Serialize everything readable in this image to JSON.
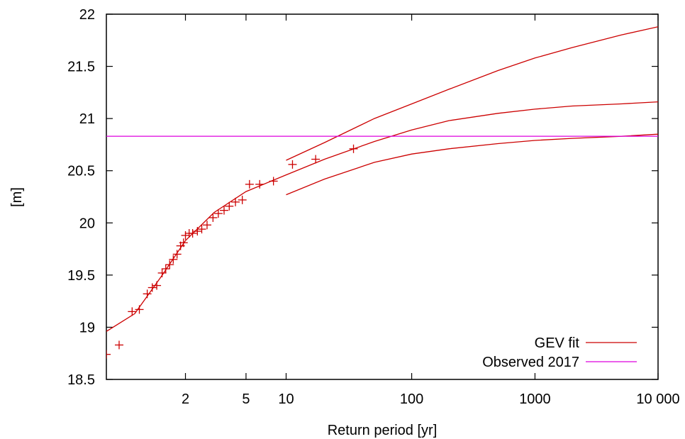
{
  "chart_data": {
    "type": "line",
    "title": "",
    "xlabel": "Return period [yr]",
    "ylabel": "[m]",
    "xscale": "log-gumbel",
    "xlim": [
      1.05,
      10000
    ],
    "ylim": [
      18.5,
      22
    ],
    "grid": false,
    "legend_position": "bottom-right",
    "xticks": [
      {
        "value": 2,
        "label": "2"
      },
      {
        "value": 5,
        "label": "5"
      },
      {
        "value": 10,
        "label": "10"
      },
      {
        "value": 100,
        "label": "100"
      },
      {
        "value": 1000,
        "label": "1000"
      },
      {
        "value": 10000,
        "label": "10 000"
      }
    ],
    "yticks": [
      {
        "value": 18.5,
        "label": "18.5"
      },
      {
        "value": 19,
        "label": "19"
      },
      {
        "value": 19.5,
        "label": "19.5"
      },
      {
        "value": 20,
        "label": "20"
      },
      {
        "value": 20.5,
        "label": "20.5"
      },
      {
        "value": 21,
        "label": "21"
      },
      {
        "value": 21.5,
        "label": "21.5"
      },
      {
        "value": 22,
        "label": "22"
      }
    ],
    "series": [
      {
        "name": "GEV fit",
        "style": "line",
        "color": "#cc0000",
        "points": [
          [
            1.05,
            18.96
          ],
          [
            1.2,
            19.13
          ],
          [
            1.5,
            19.48
          ],
          [
            2,
            19.83
          ],
          [
            3,
            20.1
          ],
          [
            5,
            20.3
          ],
          [
            10,
            20.46
          ],
          [
            20,
            20.61
          ],
          [
            50,
            20.78
          ],
          [
            100,
            20.89
          ],
          [
            200,
            20.98
          ],
          [
            500,
            21.05
          ],
          [
            1000,
            21.09
          ],
          [
            2000,
            21.12
          ],
          [
            5000,
            21.14
          ],
          [
            10000,
            21.16
          ]
        ]
      },
      {
        "name": "",
        "style": "line",
        "color": "#cc0000",
        "points": [
          [
            10,
            20.6
          ],
          [
            20,
            20.77
          ],
          [
            50,
            21.0
          ],
          [
            100,
            21.14
          ],
          [
            200,
            21.28
          ],
          [
            500,
            21.46
          ],
          [
            1000,
            21.58
          ],
          [
            2000,
            21.68
          ],
          [
            5000,
            21.8
          ],
          [
            10000,
            21.88
          ]
        ]
      },
      {
        "name": "",
        "style": "line",
        "color": "#cc0000",
        "points": [
          [
            10,
            20.27
          ],
          [
            20,
            20.42
          ],
          [
            50,
            20.58
          ],
          [
            100,
            20.66
          ],
          [
            200,
            20.71
          ],
          [
            500,
            20.76
          ],
          [
            1000,
            20.79
          ],
          [
            2000,
            20.81
          ],
          [
            5000,
            20.83
          ],
          [
            10000,
            20.85
          ]
        ]
      },
      {
        "name": "",
        "style": "markers",
        "marker": "+",
        "color": "#cc0000",
        "points": [
          [
            1.05,
            18.74
          ],
          [
            1.1,
            18.83
          ],
          [
            1.18,
            19.15
          ],
          [
            1.24,
            19.17
          ],
          [
            1.32,
            19.32
          ],
          [
            1.38,
            19.38
          ],
          [
            1.44,
            19.4
          ],
          [
            1.52,
            19.52
          ],
          [
            1.58,
            19.56
          ],
          [
            1.65,
            19.6
          ],
          [
            1.72,
            19.65
          ],
          [
            1.8,
            19.7
          ],
          [
            1.88,
            19.78
          ],
          [
            1.95,
            19.81
          ],
          [
            2.0,
            19.88
          ],
          [
            2.1,
            19.9
          ],
          [
            2.2,
            19.9
          ],
          [
            2.35,
            19.92
          ],
          [
            2.5,
            19.94
          ],
          [
            2.7,
            19.98
          ],
          [
            2.95,
            20.05
          ],
          [
            3.2,
            20.09
          ],
          [
            3.5,
            20.12
          ],
          [
            3.8,
            20.16
          ],
          [
            4.2,
            20.2
          ],
          [
            4.7,
            20.22
          ],
          [
            5.3,
            20.37
          ],
          [
            6.3,
            20.37
          ],
          [
            8.0,
            20.4
          ],
          [
            11.2,
            20.56
          ],
          [
            17.0,
            20.61
          ],
          [
            34.0,
            20.71
          ]
        ]
      },
      {
        "name": "Observed 2017",
        "style": "hline",
        "color": "#dd00dd",
        "value": 20.83
      }
    ]
  }
}
